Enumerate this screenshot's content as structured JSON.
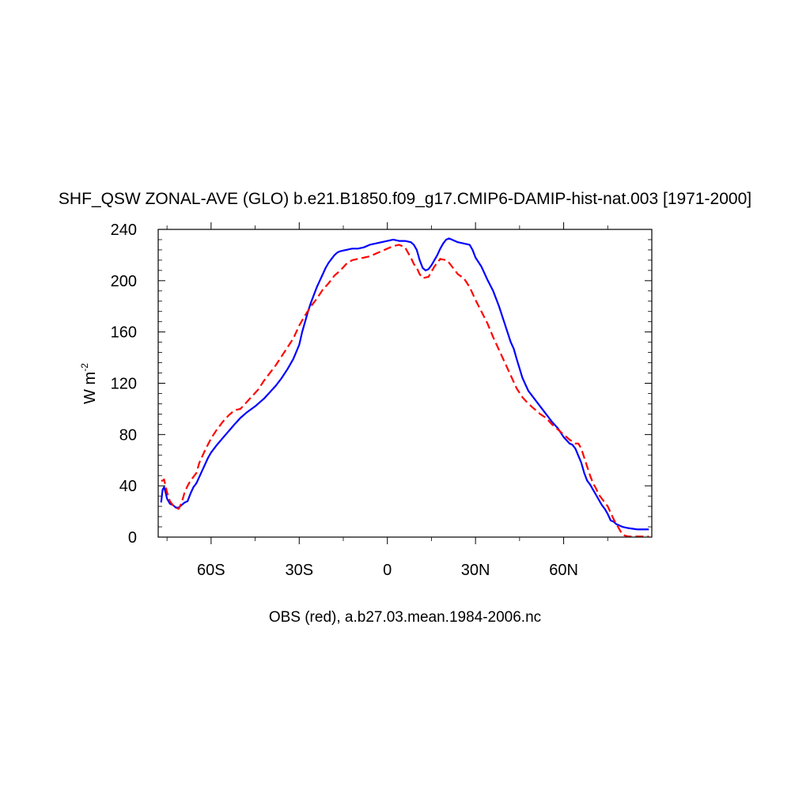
{
  "chart_data": {
    "type": "line",
    "title": "SHF_QSW ZONAL-AVE (GLO) b.e21.B1850.f09_g17.CMIP6-DAMIP-hist-nat.003 [1971-2000]",
    "xlabel": "OBS (red), a.b27.03.mean.1984-2006.nc",
    "ylabel_main": "W m",
    "ylabel_sup": "-2",
    "xlim": [
      -78,
      90
    ],
    "ylim": [
      0,
      240
    ],
    "grid": false,
    "xticks": [
      {
        "value": -60,
        "label": "60S"
      },
      {
        "value": -30,
        "label": "30S"
      },
      {
        "value": 0,
        "label": "0"
      },
      {
        "value": 30,
        "label": "30N"
      },
      {
        "value": 60,
        "label": "60N"
      }
    ],
    "yticks": [
      {
        "value": 0,
        "label": "0"
      },
      {
        "value": 40,
        "label": "40"
      },
      {
        "value": 80,
        "label": "80"
      },
      {
        "value": 120,
        "label": "120"
      },
      {
        "value": 160,
        "label": "160"
      },
      {
        "value": 200,
        "label": "200"
      },
      {
        "value": 240,
        "label": "240"
      }
    ],
    "series": [
      {
        "color": "#0000ff",
        "dash": "solid",
        "points": [
          [
            -77,
            27
          ],
          [
            -76.5,
            37
          ],
          [
            -76,
            39
          ],
          [
            -75.5,
            35
          ],
          [
            -75,
            30
          ],
          [
            -74,
            26
          ],
          [
            -73,
            25
          ],
          [
            -72,
            23
          ],
          [
            -71,
            23
          ],
          [
            -70,
            25
          ],
          [
            -69,
            27
          ],
          [
            -68,
            28
          ],
          [
            -67,
            34
          ],
          [
            -66,
            39
          ],
          [
            -65,
            42
          ],
          [
            -63,
            52
          ],
          [
            -61,
            62
          ],
          [
            -60,
            66
          ],
          [
            -58,
            72
          ],
          [
            -55,
            80
          ],
          [
            -52,
            88
          ],
          [
            -50,
            93
          ],
          [
            -48,
            97
          ],
          [
            -45,
            102
          ],
          [
            -42,
            108
          ],
          [
            -40,
            113
          ],
          [
            -38,
            118
          ],
          [
            -36,
            124
          ],
          [
            -34,
            131
          ],
          [
            -32,
            139
          ],
          [
            -30,
            150
          ],
          [
            -29,
            160
          ],
          [
            -28,
            168
          ],
          [
            -27,
            176
          ],
          [
            -26,
            183
          ],
          [
            -25,
            189
          ],
          [
            -24,
            195
          ],
          [
            -23,
            200
          ],
          [
            -22,
            205
          ],
          [
            -21,
            210
          ],
          [
            -20,
            214
          ],
          [
            -19,
            217
          ],
          [
            -18,
            220
          ],
          [
            -17,
            222
          ],
          [
            -16,
            223
          ],
          [
            -14,
            224
          ],
          [
            -12,
            225
          ],
          [
            -10,
            225
          ],
          [
            -8,
            226
          ],
          [
            -6,
            228
          ],
          [
            -4,
            229
          ],
          [
            -2,
            230
          ],
          [
            0,
            231
          ],
          [
            2,
            232
          ],
          [
            4,
            231
          ],
          [
            6,
            231
          ],
          [
            8,
            230
          ],
          [
            9,
            228
          ],
          [
            10,
            224
          ],
          [
            11,
            216
          ],
          [
            12,
            210
          ],
          [
            13,
            208
          ],
          [
            14,
            209
          ],
          [
            15,
            212
          ],
          [
            16,
            216
          ],
          [
            17,
            220
          ],
          [
            18,
            225
          ],
          [
            19,
            229
          ],
          [
            20,
            232
          ],
          [
            21,
            233
          ],
          [
            22,
            232
          ],
          [
            24,
            230
          ],
          [
            26,
            229
          ],
          [
            28,
            228
          ],
          [
            29,
            224
          ],
          [
            30,
            218
          ],
          [
            32,
            211
          ],
          [
            34,
            201
          ],
          [
            36,
            192
          ],
          [
            38,
            180
          ],
          [
            40,
            166
          ],
          [
            42,
            152
          ],
          [
            43,
            147
          ],
          [
            44,
            139
          ],
          [
            46,
            124
          ],
          [
            48,
            114
          ],
          [
            50,
            108
          ],
          [
            52,
            102
          ],
          [
            54,
            96
          ],
          [
            56,
            90
          ],
          [
            58,
            85
          ],
          [
            60,
            78
          ],
          [
            62,
            73
          ],
          [
            63,
            72
          ],
          [
            64,
            69
          ],
          [
            66,
            58
          ],
          [
            67,
            50
          ],
          [
            68,
            44
          ],
          [
            69,
            41
          ],
          [
            70,
            37
          ],
          [
            71,
            33
          ],
          [
            72,
            29
          ],
          [
            73,
            25
          ],
          [
            74,
            22
          ],
          [
            75,
            18
          ],
          [
            76,
            13
          ],
          [
            77,
            12
          ],
          [
            78,
            10
          ],
          [
            79,
            9
          ],
          [
            80,
            8
          ],
          [
            82,
            7
          ],
          [
            85,
            6
          ],
          [
            88,
            6
          ],
          [
            89,
            6
          ]
        ]
      },
      {
        "color": "#ff0000",
        "dash": "dashed",
        "points": [
          [
            -77,
            44
          ],
          [
            -76.5,
            44
          ],
          [
            -76,
            45
          ],
          [
            -75,
            35
          ],
          [
            -74,
            28
          ],
          [
            -73,
            25
          ],
          [
            -72,
            23
          ],
          [
            -71,
            22
          ],
          [
            -70,
            27
          ],
          [
            -69,
            35
          ],
          [
            -68,
            40
          ],
          [
            -67,
            44
          ],
          [
            -66,
            47
          ],
          [
            -65,
            50
          ],
          [
            -64,
            58
          ],
          [
            -62,
            68
          ],
          [
            -60,
            77
          ],
          [
            -58,
            84
          ],
          [
            -56,
            90
          ],
          [
            -54,
            95
          ],
          [
            -52,
            99
          ],
          [
            -50,
            100
          ],
          [
            -48,
            105
          ],
          [
            -46,
            110
          ],
          [
            -44,
            115
          ],
          [
            -42,
            122
          ],
          [
            -40,
            128
          ],
          [
            -38,
            134
          ],
          [
            -36,
            141
          ],
          [
            -34,
            148
          ],
          [
            -32,
            155
          ],
          [
            -31,
            160
          ],
          [
            -30,
            165
          ],
          [
            -28,
            173
          ],
          [
            -26,
            180
          ],
          [
            -24,
            186
          ],
          [
            -22,
            193
          ],
          [
            -20,
            198
          ],
          [
            -18,
            204
          ],
          [
            -16,
            208
          ],
          [
            -14,
            213
          ],
          [
            -12,
            216
          ],
          [
            -10,
            217
          ],
          [
            -8,
            218
          ],
          [
            -6,
            219
          ],
          [
            -4,
            221
          ],
          [
            -2,
            223
          ],
          [
            0,
            225
          ],
          [
            2,
            227
          ],
          [
            4,
            228
          ],
          [
            6,
            226
          ],
          [
            7,
            222
          ],
          [
            8,
            218
          ],
          [
            9,
            213
          ],
          [
            10,
            210
          ],
          [
            11,
            205
          ],
          [
            12,
            202
          ],
          [
            14,
            203
          ],
          [
            15,
            207
          ],
          [
            16,
            211
          ],
          [
            17,
            214
          ],
          [
            18,
            217
          ],
          [
            20,
            216
          ],
          [
            21,
            214
          ],
          [
            22,
            211
          ],
          [
            23,
            208
          ],
          [
            24,
            205
          ],
          [
            26,
            202
          ],
          [
            28,
            195
          ],
          [
            30,
            185
          ],
          [
            32,
            176
          ],
          [
            34,
            167
          ],
          [
            36,
            156
          ],
          [
            38,
            146
          ],
          [
            40,
            136
          ],
          [
            42,
            126
          ],
          [
            44,
            116
          ],
          [
            46,
            109
          ],
          [
            48,
            104
          ],
          [
            50,
            100
          ],
          [
            52,
            96
          ],
          [
            54,
            93
          ],
          [
            56,
            88
          ],
          [
            58,
            84
          ],
          [
            60,
            80
          ],
          [
            62,
            76
          ],
          [
            64,
            73
          ],
          [
            65,
            73
          ],
          [
            66,
            69
          ],
          [
            67,
            62
          ],
          [
            68,
            55
          ],
          [
            69,
            48
          ],
          [
            70,
            42
          ],
          [
            71,
            38
          ],
          [
            72,
            33
          ],
          [
            73,
            30
          ],
          [
            74,
            27
          ],
          [
            75,
            24
          ],
          [
            76,
            19
          ],
          [
            77,
            14
          ],
          [
            78,
            10
          ],
          [
            79,
            6
          ],
          [
            80,
            2
          ],
          [
            81,
            1
          ],
          [
            82,
            0.5
          ],
          [
            85,
            0.5
          ],
          [
            89,
            0.5
          ]
        ]
      }
    ]
  }
}
